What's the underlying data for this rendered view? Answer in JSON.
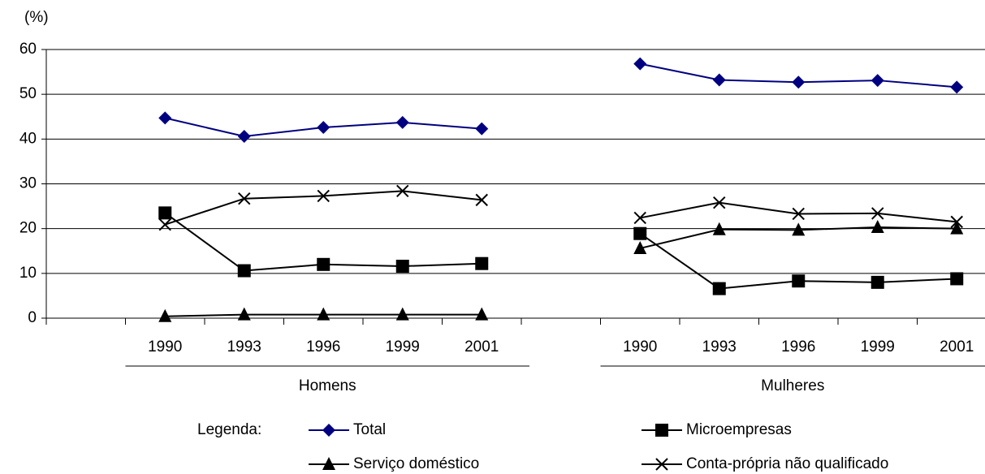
{
  "chart_data": {
    "type": "line",
    "y_unit_label": "(%)",
    "categories": [
      null,
      "1990",
      "1993",
      "1996",
      "1999",
      "2001",
      null,
      "1990",
      "1993",
      "1996",
      "1999",
      "2001"
    ],
    "group_labels": [
      "Homens",
      "Mulheres"
    ],
    "legend_title": "Legenda:",
    "series": [
      {
        "name": "Total",
        "color": "#000080",
        "marker": "diamond",
        "values": [
          null,
          44.7,
          40.6,
          42.6,
          43.7,
          42.3,
          null,
          56.8,
          53.2,
          52.7,
          53.1,
          51.6
        ]
      },
      {
        "name": "Microempresas",
        "color": "#000000",
        "marker": "square",
        "values": [
          null,
          23.5,
          10.6,
          12.0,
          11.6,
          12.2,
          null,
          18.9,
          6.6,
          8.3,
          8.0,
          8.8
        ]
      },
      {
        "name": "Serviço doméstico",
        "color": "#000000",
        "marker": "triangle",
        "values": [
          null,
          0.4,
          0.8,
          0.8,
          0.8,
          0.8,
          null,
          15.6,
          19.8,
          19.7,
          20.3,
          20.0
        ]
      },
      {
        "name": "Conta-própria não qualificado",
        "color": "#000000",
        "marker": "x",
        "values": [
          null,
          20.9,
          26.7,
          27.3,
          28.4,
          26.4,
          null,
          22.4,
          25.8,
          23.3,
          23.4,
          21.5
        ]
      }
    ],
    "ylim": [
      0,
      60
    ],
    "yticks": [
      0,
      10,
      20,
      30,
      40,
      50,
      60
    ],
    "grid": true
  }
}
